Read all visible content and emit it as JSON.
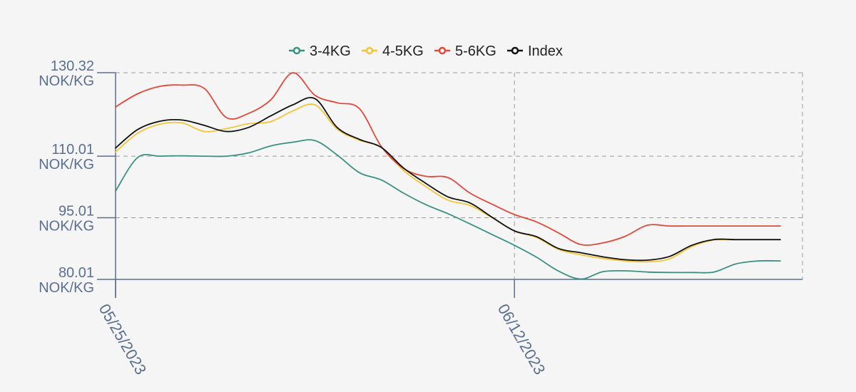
{
  "chart_data": {
    "type": "line",
    "title": "",
    "xlabel": "",
    "ylabel": "",
    "x_tick_labels": [
      "05/25/2023",
      "06/12/2023"
    ],
    "y_ticks": [
      {
        "value": 130.32,
        "line1": "130.32",
        "line2": "NOK/KG"
      },
      {
        "value": 110.01,
        "line1": "110.01",
        "line2": "NOK/KG"
      },
      {
        "value": 95.01,
        "line1": "95.01",
        "line2": "NOK/KG"
      },
      {
        "value": 80.01,
        "line1": "80.01",
        "line2": "NOK/KG"
      }
    ],
    "ylim": [
      80.01,
      130.32
    ],
    "xlim": [
      "2023-05-25",
      "2023-06-25"
    ],
    "grid": true,
    "legend_position": "top",
    "dates": [
      "2023-05-25",
      "2023-05-26",
      "2023-05-27",
      "2023-05-28",
      "2023-05-29",
      "2023-05-30",
      "2023-05-31",
      "2023-06-01",
      "2023-06-02",
      "2023-06-03",
      "2023-06-04",
      "2023-06-05",
      "2023-06-06",
      "2023-06-07",
      "2023-06-08",
      "2023-06-09",
      "2023-06-10",
      "2023-06-11",
      "2023-06-12",
      "2023-06-13",
      "2023-06-14",
      "2023-06-15",
      "2023-06-16",
      "2023-06-17",
      "2023-06-18",
      "2023-06-19",
      "2023-06-20",
      "2023-06-21",
      "2023-06-22",
      "2023-06-23",
      "2023-06-24"
    ],
    "series": [
      {
        "name": "3-4KG",
        "color": "#3b9180",
        "values": [
          101.5,
          109.7,
          110.0,
          110.1,
          110.0,
          110.0,
          110.8,
          112.5,
          113.4,
          113.8,
          110.3,
          106.0,
          104.2,
          101.0,
          98.2,
          96.0,
          93.5,
          90.9,
          88.3,
          85.4,
          82.0,
          80.1,
          81.9,
          82.1,
          81.8,
          81.7,
          81.7,
          81.8,
          83.8,
          84.5,
          84.5
        ]
      },
      {
        "name": "4-5KG",
        "color": "#f2c437",
        "values": [
          111.0,
          115.6,
          117.8,
          118.1,
          116.0,
          116.7,
          117.9,
          118.4,
          121.0,
          122.5,
          116.6,
          113.9,
          112.1,
          106.5,
          102.6,
          99.3,
          98.0,
          95.0,
          91.8,
          90.2,
          87.3,
          86.0,
          85.1,
          84.5,
          84.3,
          85.0,
          88.0,
          89.6,
          89.6,
          89.6,
          89.6
        ]
      },
      {
        "name": "5-6KG",
        "color": "#e04a3a",
        "values": [
          122.0,
          125.2,
          127.0,
          127.3,
          126.5,
          119.4,
          120.4,
          123.7,
          130.3,
          124.8,
          123.0,
          121.6,
          112.3,
          107.0,
          105.1,
          104.8,
          101.0,
          98.3,
          95.8,
          94.0,
          91.3,
          88.5,
          88.9,
          90.5,
          93.2,
          93.0,
          93.0,
          93.0,
          93.0,
          93.0,
          93.0
        ]
      },
      {
        "name": "Index",
        "color": "#111111",
        "values": [
          112.0,
          116.5,
          118.5,
          118.8,
          117.5,
          116.0,
          117.0,
          119.8,
          122.5,
          124.0,
          117.0,
          114.1,
          112.1,
          107.1,
          103.4,
          100.1,
          98.6,
          95.1,
          91.8,
          90.4,
          87.5,
          86.5,
          85.5,
          84.8,
          84.7,
          85.6,
          88.3,
          89.7,
          89.7,
          89.7,
          89.7
        ]
      }
    ]
  }
}
